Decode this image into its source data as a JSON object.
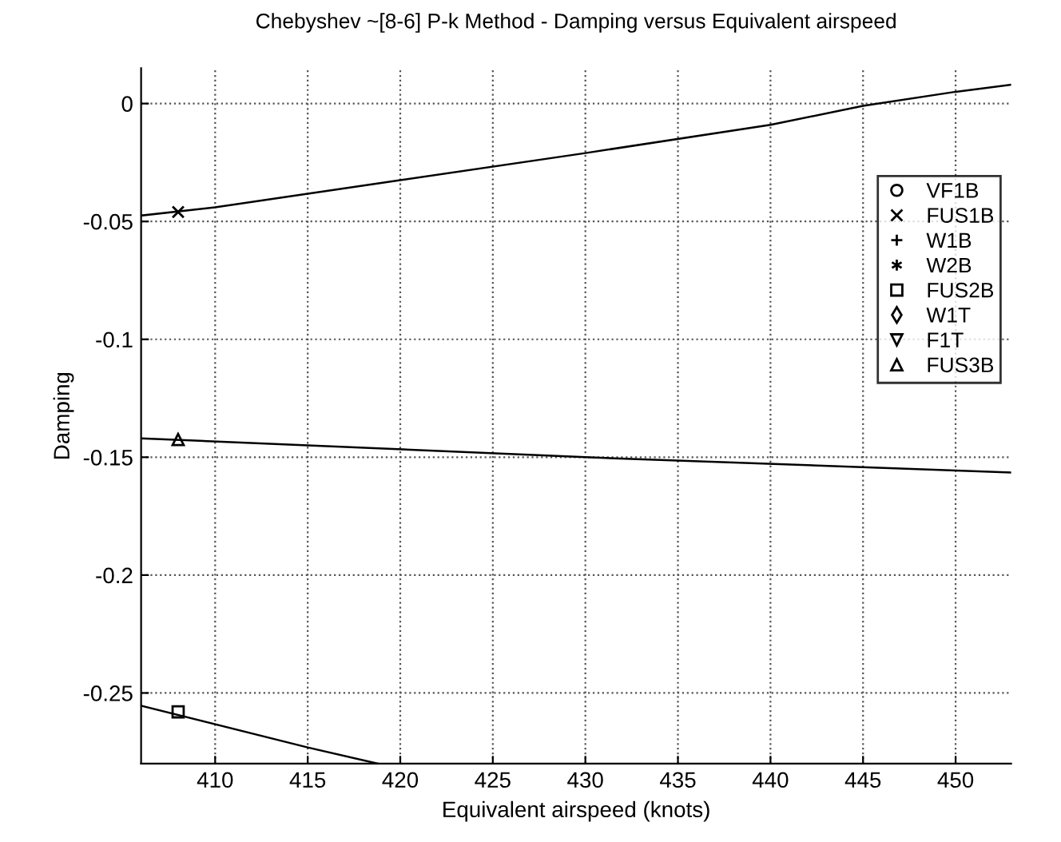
{
  "chart_data": {
    "type": "scatter",
    "title": "Chebyshev ~[8-6] P-k Method - Damping versus Equivalent airspeed",
    "xlabel": "Equivalent airspeed (knots)",
    "ylabel": "Damping",
    "xlim": [
      406,
      453
    ],
    "ylim": [
      -0.28,
      0.015
    ],
    "xticks": [
      410,
      415,
      420,
      425,
      430,
      435,
      440,
      445,
      450
    ],
    "yticks": [
      0,
      -0.05,
      -0.1,
      -0.15,
      -0.2,
      -0.25
    ],
    "grid": true,
    "legend": "top right",
    "series": [
      {
        "name": "VF1B",
        "marker": "circle",
        "color": "#000000"
      },
      {
        "name": "FUS1B",
        "marker": "cross",
        "color": "#000000",
        "x": [
          408
        ],
        "values": [
          -0.046
        ]
      },
      {
        "name": "W1B",
        "marker": "plus",
        "color": "#000000"
      },
      {
        "name": "W2B",
        "marker": "star",
        "color": "#000000"
      },
      {
        "name": "FUS2B",
        "marker": "square",
        "color": "#000000",
        "x": [
          408
        ],
        "values": [
          -0.258
        ]
      },
      {
        "name": "W1T",
        "marker": "diamond",
        "color": "#000000"
      },
      {
        "name": "F1T",
        "marker": "triangle_down",
        "color": "#000000"
      },
      {
        "name": "FUS3B",
        "marker": "triangle",
        "color": "#000000",
        "x": [
          408
        ],
        "values": [
          -0.1425
        ]
      },
      {
        "type": "line",
        "marker": "none",
        "color": "#000000",
        "x": [
          406,
          410,
          420,
          430,
          440,
          445,
          450,
          453
        ],
        "values": [
          -0.0475,
          -0.044,
          -0.0325,
          -0.021,
          -0.009,
          -0.001,
          0.005,
          0.008
        ]
      },
      {
        "type": "line",
        "marker": "none",
        "color": "#000000",
        "x": [
          406,
          430,
          453
        ],
        "values": [
          -0.142,
          -0.15,
          -0.1565
        ]
      },
      {
        "type": "line",
        "marker": "none",
        "color": "#000000",
        "x": [
          406,
          415,
          418.8
        ],
        "values": [
          -0.2554,
          -0.2731,
          -0.28
        ]
      }
    ]
  }
}
